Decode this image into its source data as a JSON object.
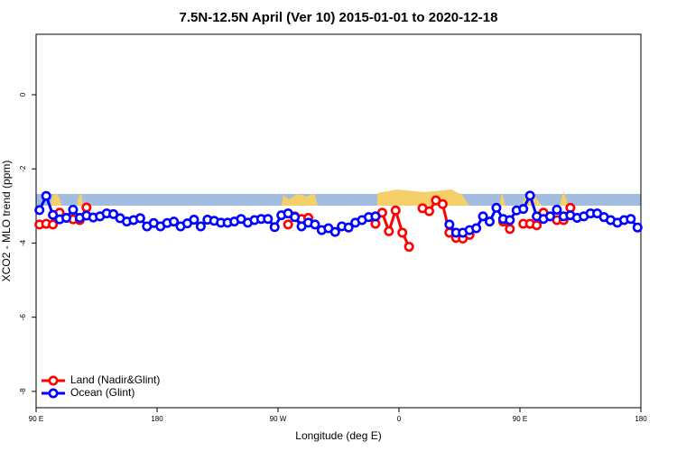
{
  "chart_data": {
    "type": "line",
    "title": "7.5N-12.5N April (Ver 10)   2015-01-01 to 2020-12-18",
    "xlabel": "Longitude (deg E)",
    "ylabel": "XCO2 - MLO trend (ppm)",
    "xlim": [
      90,
      540
    ],
    "xticks": [
      {
        "value": 90,
        "label": "90 E"
      },
      {
        "value": 180,
        "label": "180"
      },
      {
        "value": 270,
        "label": "90 W"
      },
      {
        "value": 360,
        "label": "0"
      },
      {
        "value": 450,
        "label": "90 E"
      },
      {
        "value": 540,
        "label": "180"
      }
    ],
    "ylim": [
      -8.44,
      1.63
    ],
    "yticks": [
      0,
      -2,
      -4,
      -6,
      -8
    ],
    "legend": "bottom-left",
    "x": [
      92.5,
      97.5,
      102.5,
      107.5,
      112.5,
      117.5,
      122.5,
      127.5,
      132.5,
      137.5,
      142.5,
      147.5,
      152.5,
      157.5,
      162.5,
      167.5,
      172.5,
      177.5,
      182.5,
      187.5,
      192.5,
      197.5,
      202.5,
      207.5,
      212.5,
      217.5,
      222.5,
      227.5,
      232.5,
      237.5,
      242.5,
      247.5,
      252.5,
      257.5,
      262.5,
      267.5,
      272.5,
      277.5,
      282.5,
      287.5,
      292.5,
      297.5,
      302.5,
      307.5,
      312.5,
      317.5,
      322.5,
      327.5,
      332.5,
      337.5,
      342.5,
      347.5,
      352.5,
      357.5,
      362.5,
      367.5,
      372.5,
      377.5,
      382.5,
      387.5,
      392.5,
      397.5,
      402.5,
      407.5,
      412.5,
      417.5,
      422.5,
      427.5,
      432.5,
      437.5,
      442.5,
      447.5,
      452.5,
      457.5,
      462.5,
      467.5,
      472.5,
      477.5,
      482.5,
      487.5,
      492.5,
      497.5,
      502.5,
      507.5,
      512.5,
      517.5,
      522.5,
      527.5,
      532.5,
      537.5
    ],
    "series": [
      {
        "name": "Land (Nadir&Glint)",
        "color": "#ff0000",
        "values": [
          -3.5,
          -3.48,
          -3.5,
          -3.18,
          null,
          -3.36,
          -3.38,
          -3.04,
          null,
          null,
          null,
          null,
          null,
          null,
          null,
          null,
          null,
          null,
          null,
          null,
          null,
          null,
          null,
          null,
          null,
          null,
          null,
          null,
          null,
          null,
          null,
          null,
          null,
          null,
          null,
          null,
          null,
          -3.5,
          -3.28,
          -3.35,
          -3.32,
          null,
          null,
          null,
          null,
          null,
          null,
          null,
          null,
          null,
          -3.48,
          -3.18,
          -3.68,
          -3.12,
          -3.72,
          -4.1,
          null,
          -3.06,
          -3.14,
          -2.85,
          -2.95,
          -3.72,
          -3.86,
          -3.88,
          -3.78,
          null,
          null,
          null,
          null,
          -3.42,
          -3.62,
          null,
          -3.48,
          -3.48,
          -3.52,
          -3.18,
          null,
          -3.38,
          -3.38,
          -3.05,
          null,
          null,
          null,
          null,
          null,
          null,
          null,
          null,
          null,
          null
        ]
      },
      {
        "name": "Ocean (Glint)",
        "color": "#0000ff",
        "values": [
          -3.11,
          -2.73,
          -3.24,
          -3.36,
          -3.32,
          -3.1,
          -3.32,
          -3.26,
          -3.31,
          -3.28,
          -3.2,
          -3.22,
          -3.33,
          -3.42,
          -3.38,
          -3.33,
          -3.55,
          -3.46,
          -3.55,
          -3.46,
          -3.42,
          -3.55,
          -3.47,
          -3.37,
          -3.55,
          -3.37,
          -3.4,
          -3.45,
          -3.45,
          -3.42,
          -3.35,
          -3.45,
          -3.38,
          -3.35,
          -3.35,
          -3.57,
          -3.25,
          -3.2,
          -3.3,
          -3.55,
          -3.45,
          -3.5,
          -3.65,
          -3.6,
          -3.7,
          -3.55,
          -3.58,
          -3.45,
          -3.38,
          -3.3,
          -3.28,
          null,
          null,
          null,
          null,
          null,
          null,
          null,
          null,
          null,
          null,
          -3.5,
          -3.72,
          -3.72,
          -3.65,
          -3.6,
          -3.28,
          -3.42,
          -3.05,
          -3.35,
          -3.38,
          -3.12,
          -3.08,
          -2.72,
          -3.28,
          -3.35,
          -3.28,
          -3.1,
          -3.28,
          -3.25,
          -3.32,
          -3.28,
          -3.2,
          -3.2,
          -3.3,
          -3.38,
          -3.45,
          -3.38,
          -3.35,
          -3.58
        ]
      }
    ]
  }
}
